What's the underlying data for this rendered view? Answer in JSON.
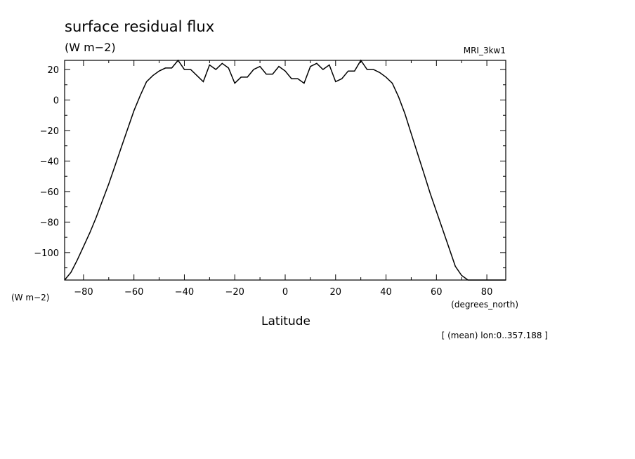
{
  "chart_data": {
    "type": "line",
    "title": "surface residual flux",
    "units": "(W m−2)",
    "model": "MRI_3kw1",
    "ylabel": "(W m−2)",
    "xlabel": "Latitude",
    "xunits": "(degrees_north)",
    "note": "[ (mean) lon:0..357.188 ]",
    "xlim": [
      -87.5,
      87.5
    ],
    "ylim": [
      -118,
      26
    ],
    "xticks": [
      -80,
      -60,
      -40,
      -20,
      0,
      20,
      40,
      60,
      80
    ],
    "xtick_labels": [
      "−80",
      "−60",
      "−40",
      "−20",
      "0",
      "20",
      "40",
      "60",
      "80"
    ],
    "yticks": [
      20,
      0,
      -20,
      -40,
      -60,
      -80,
      -100
    ],
    "ytick_labels": [
      "20",
      "0",
      "−20",
      "−40",
      "−60",
      "−80",
      "−100"
    ],
    "series": [
      {
        "x": [
          -87.5,
          -85,
          -82.5,
          -80,
          -77.5,
          -75,
          -72.5,
          -70,
          -67.5,
          -65,
          -62.5,
          -60,
          -57.5,
          -55,
          -52.5,
          -50,
          -47.5,
          -45,
          -42.5,
          -40,
          -37.5,
          -35,
          -32.5,
          -30,
          -27.5,
          -25,
          -22.5,
          -20,
          -17.5,
          -15,
          -12.5,
          -10,
          -7.5,
          -5,
          -2.5,
          0,
          2.5,
          5,
          7.5,
          10,
          12.5,
          15,
          17.5,
          20,
          22.5,
          25,
          27.5,
          30,
          32.5,
          35,
          37.5,
          40,
          42.5,
          45,
          47.5,
          50,
          52.5,
          55,
          57.5,
          60,
          62.5,
          65,
          67.5,
          70,
          72.5,
          75,
          77.5,
          80,
          82.5,
          85,
          87.5
        ],
        "y": [
          -118,
          -113,
          -105,
          -96,
          -87,
          -77,
          -66,
          -55,
          -43,
          -31,
          -19,
          -7,
          3,
          12,
          16,
          19,
          21,
          21,
          26,
          20,
          20,
          16,
          12,
          23,
          20,
          24,
          21,
          11,
          15,
          15,
          20,
          22,
          17,
          17,
          22,
          19,
          14,
          14,
          11,
          22,
          24,
          20,
          23,
          12,
          14,
          19,
          19,
          26,
          20,
          20,
          18,
          15,
          11,
          2,
          -9,
          -22,
          -35,
          -48,
          -61,
          -73,
          -85,
          -97,
          -109,
          -115,
          -118,
          -118,
          -118,
          -118,
          -118,
          -118,
          -118
        ]
      }
    ]
  }
}
